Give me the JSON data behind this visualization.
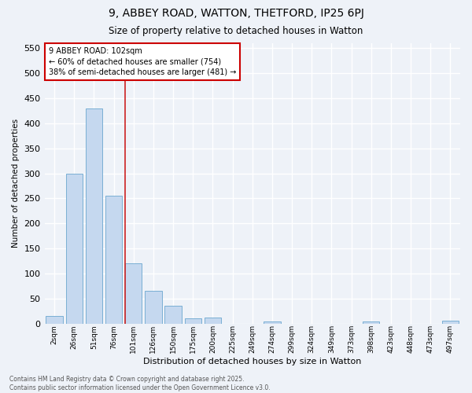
{
  "title_line1": "9, ABBEY ROAD, WATTON, THETFORD, IP25 6PJ",
  "title_line2": "Size of property relative to detached houses in Watton",
  "xlabel": "Distribution of detached houses by size in Watton",
  "ylabel": "Number of detached properties",
  "bar_labels": [
    "2sqm",
    "26sqm",
    "51sqm",
    "76sqm",
    "101sqm",
    "126sqm",
    "150sqm",
    "175sqm",
    "200sqm",
    "225sqm",
    "249sqm",
    "274sqm",
    "299sqm",
    "324sqm",
    "349sqm",
    "373sqm",
    "398sqm",
    "423sqm",
    "448sqm",
    "473sqm",
    "497sqm"
  ],
  "bar_values": [
    15,
    300,
    430,
    255,
    120,
    65,
    35,
    10,
    12,
    0,
    0,
    4,
    0,
    0,
    0,
    0,
    4,
    0,
    0,
    0,
    5
  ],
  "bar_color": "#c5d8ef",
  "bar_edge_color": "#7aafd4",
  "vline_index": 4,
  "vline_color": "#cc2222",
  "annotation_text": "9 ABBEY ROAD: 102sqm\n← 60% of detached houses are smaller (754)\n38% of semi-detached houses are larger (481) →",
  "annotation_box_facecolor": "#ffffff",
  "annotation_border_color": "#cc0000",
  "ylim": [
    0,
    560
  ],
  "yticks": [
    0,
    50,
    100,
    150,
    200,
    250,
    300,
    350,
    400,
    450,
    500,
    550
  ],
  "footer_line1": "Contains HM Land Registry data © Crown copyright and database right 2025.",
  "footer_line2": "Contains public sector information licensed under the Open Government Licence v3.0.",
  "bg_color": "#eef2f8",
  "grid_color": "#ffffff"
}
